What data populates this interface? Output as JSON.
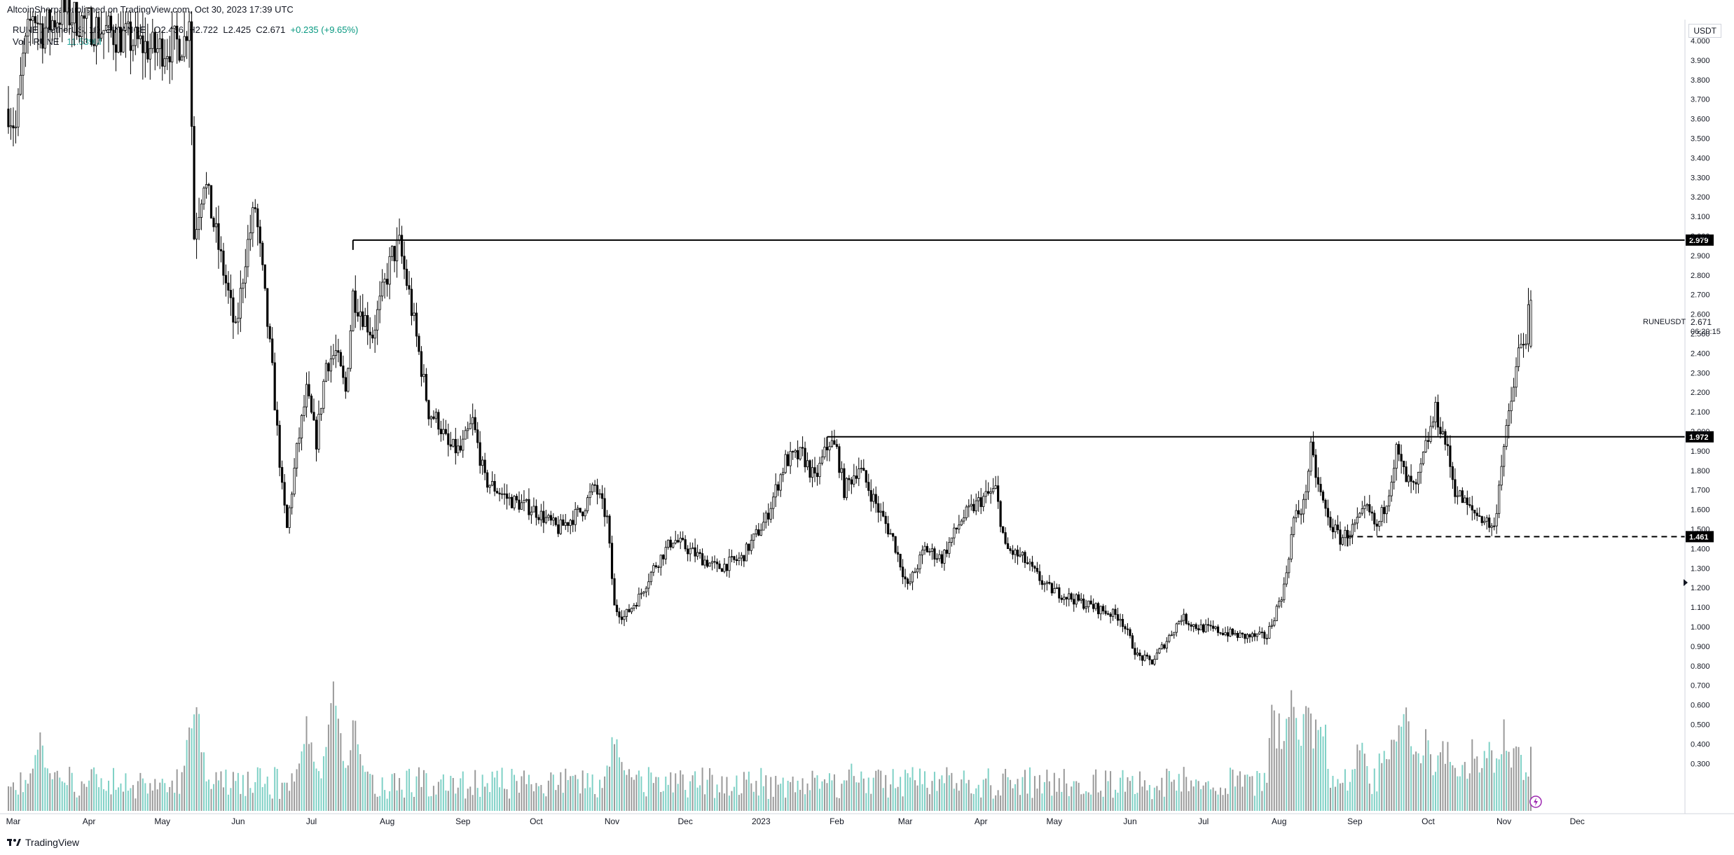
{
  "header": {
    "published": "AltcoinSherpa published on TradingView.com, Oct 30, 2023 17:39 UTC"
  },
  "legend": {
    "symbol": "RUNE / TetherUS, 1D, BINANCE",
    "open": "O2.436",
    "high": "H2.722",
    "low": "L2.425",
    "close": "C2.671",
    "change": "+0.235 (+9.65%)",
    "vol_label": "Vol · RUNE",
    "vol_value": "11.539M"
  },
  "currency": "USDT",
  "symbol_tag": "RUNEUSDT",
  "last_price": "2.671",
  "countdown": "06:20:15",
  "footer": {
    "logo_icon": "tradingview-logo-icon",
    "brand": "TradingView"
  },
  "colors": {
    "candle": "#000000",
    "vol_up": "#7fd1c6",
    "vol_down": "#9a9a9a",
    "line": "#000000",
    "label_bg": "#000000"
  },
  "chart_data": {
    "type": "candlestick",
    "title": "",
    "ylim": [
      0.25,
      4.15
    ],
    "y_ticks": [
      "4.000",
      "3.900",
      "3.800",
      "3.700",
      "3.600",
      "3.500",
      "3.400",
      "3.300",
      "3.200",
      "3.100",
      "3.000",
      "2.900",
      "2.800",
      "2.700",
      "2.600",
      "2.500",
      "2.400",
      "2.300",
      "2.200",
      "2.100",
      "2.000",
      "1.900",
      "1.800",
      "1.700",
      "1.600",
      "1.500",
      "1.400",
      "1.300",
      "1.200",
      "1.100",
      "1.000",
      "0.900",
      "0.800",
      "0.700",
      "0.600",
      "0.500",
      "0.400",
      "0.300"
    ],
    "x_ticks": [
      "Mar",
      "Apr",
      "May",
      "Jun",
      "Jul",
      "Aug",
      "Sep",
      "Oct",
      "Nov",
      "Dec",
      "2023",
      "Feb",
      "Mar",
      "Apr",
      "May",
      "Jun",
      "Jul",
      "Aug",
      "Sep",
      "Oct",
      "Nov",
      "Dec"
    ],
    "x_tick_index": [
      2,
      33,
      63,
      94,
      124,
      155,
      186,
      216,
      247,
      277,
      308,
      339,
      367,
      398,
      428,
      459,
      489,
      520,
      551,
      581,
      612,
      642
    ],
    "n_bars": 670,
    "close_path": [
      [
        0,
        3.65
      ],
      [
        3,
        3.55
      ],
      [
        6,
        3.9
      ],
      [
        10,
        4.15
      ],
      [
        14,
        4.05
      ],
      [
        18,
        4.1
      ],
      [
        22,
        4.15
      ],
      [
        30,
        4.1
      ],
      [
        50,
        4.0
      ],
      [
        60,
        3.95
      ],
      [
        72,
        4.0
      ],
      [
        74,
        4.15
      ],
      [
        76,
        3.0
      ],
      [
        80,
        3.3
      ],
      [
        85,
        3.0
      ],
      [
        90,
        2.7
      ],
      [
        93,
        2.5
      ],
      [
        97,
        2.9
      ],
      [
        101,
        3.15
      ],
      [
        104,
        2.8
      ],
      [
        108,
        2.3
      ],
      [
        112,
        1.7
      ],
      [
        114,
        1.5
      ],
      [
        118,
        1.9
      ],
      [
        122,
        2.2
      ],
      [
        126,
        1.95
      ],
      [
        130,
        2.35
      ],
      [
        134,
        2.4
      ],
      [
        138,
        2.2
      ],
      [
        141,
        2.7
      ],
      [
        145,
        2.6
      ],
      [
        149,
        2.5
      ],
      [
        153,
        2.7
      ],
      [
        157,
        2.9
      ],
      [
        160,
        2.95
      ],
      [
        164,
        2.7
      ],
      [
        168,
        2.4
      ],
      [
        172,
        2.1
      ],
      [
        176,
        2.05
      ],
      [
        180,
        1.92
      ],
      [
        185,
        1.9
      ],
      [
        190,
        2.05
      ],
      [
        195,
        1.75
      ],
      [
        205,
        1.65
      ],
      [
        215,
        1.6
      ],
      [
        225,
        1.5
      ],
      [
        235,
        1.6
      ],
      [
        240,
        1.72
      ],
      [
        245,
        1.55
      ],
      [
        248,
        1.1
      ],
      [
        252,
        1.05
      ],
      [
        258,
        1.15
      ],
      [
        264,
        1.3
      ],
      [
        272,
        1.45
      ],
      [
        280,
        1.38
      ],
      [
        290,
        1.3
      ],
      [
        300,
        1.35
      ],
      [
        310,
        1.55
      ],
      [
        318,
        1.85
      ],
      [
        325,
        1.88
      ],
      [
        330,
        1.75
      ],
      [
        336,
        1.95
      ],
      [
        339,
        1.9
      ],
      [
        342,
        1.7
      ],
      [
        348,
        1.82
      ],
      [
        356,
        1.6
      ],
      [
        362,
        1.45
      ],
      [
        368,
        1.2
      ],
      [
        375,
        1.4
      ],
      [
        382,
        1.35
      ],
      [
        390,
        1.55
      ],
      [
        398,
        1.65
      ],
      [
        404,
        1.7
      ],
      [
        408,
        1.4
      ],
      [
        415,
        1.35
      ],
      [
        425,
        1.2
      ],
      [
        440,
        1.12
      ],
      [
        455,
        1.05
      ],
      [
        462,
        0.85
      ],
      [
        468,
        0.82
      ],
      [
        474,
        0.93
      ],
      [
        480,
        1.05
      ],
      [
        486,
        1.0
      ],
      [
        495,
        0.98
      ],
      [
        505,
        0.95
      ],
      [
        515,
        0.95
      ],
      [
        522,
        1.2
      ],
      [
        526,
        1.55
      ],
      [
        530,
        1.62
      ],
      [
        533,
        1.9
      ],
      [
        536,
        1.72
      ],
      [
        540,
        1.55
      ],
      [
        545,
        1.45
      ],
      [
        550,
        1.5
      ],
      [
        556,
        1.6
      ],
      [
        560,
        1.5
      ],
      [
        564,
        1.65
      ],
      [
        568,
        1.9
      ],
      [
        572,
        1.75
      ],
      [
        576,
        1.7
      ],
      [
        580,
        1.92
      ],
      [
        584,
        2.1
      ],
      [
        588,
        1.95
      ],
      [
        592,
        1.7
      ],
      [
        598,
        1.6
      ],
      [
        604,
        1.55
      ],
      [
        608,
        1.5
      ],
      [
        611,
        1.85
      ],
      [
        613,
        1.99
      ],
      [
        615,
        2.15
      ],
      [
        618,
        2.4
      ],
      [
        621,
        2.5
      ],
      [
        623,
        2.671
      ]
    ],
    "volume_ylim": [
      0,
      1.0
    ],
    "volume_spikes": [
      [
        0,
        0.2
      ],
      [
        13,
        0.55
      ],
      [
        76,
        0.93
      ],
      [
        122,
        0.72
      ],
      [
        133,
        0.94
      ],
      [
        142,
        0.75
      ],
      [
        248,
        0.6
      ],
      [
        345,
        0.35
      ],
      [
        525,
        0.92
      ],
      [
        531,
        0.85
      ],
      [
        553,
        0.55
      ],
      [
        567,
        0.55
      ],
      [
        571,
        0.86
      ],
      [
        580,
        0.6
      ],
      [
        612,
        0.63
      ]
    ],
    "levels": [
      {
        "value": 2.979,
        "label": "2.979",
        "from_bar": 141,
        "style": "solid"
      },
      {
        "value": 1.972,
        "label": "1.972",
        "from_bar": 335,
        "style": "solid"
      },
      {
        "value": 1.461,
        "label": "1.461",
        "from_bar": 548,
        "style": "dashed"
      }
    ]
  }
}
